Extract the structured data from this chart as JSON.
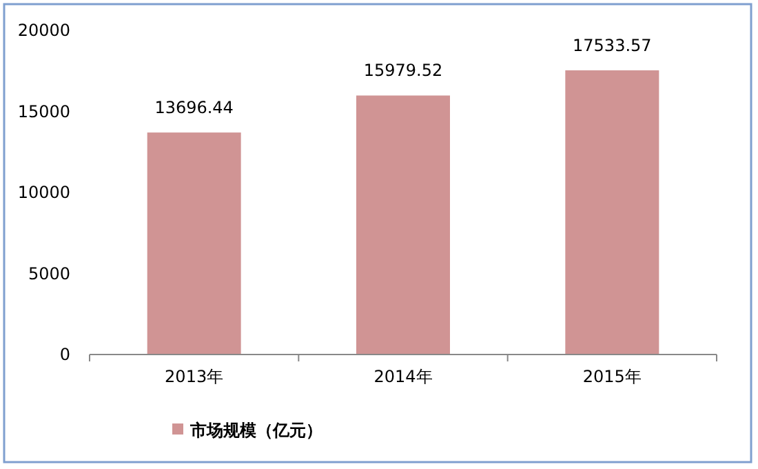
{
  "chart_data": {
    "type": "bar",
    "categories": [
      "2013年",
      "2014年",
      "2015年"
    ],
    "series": [
      {
        "name": "市场规模（亿元）",
        "color": "#d09494",
        "values": [
          13696.44,
          15979.52,
          17533.57
        ]
      }
    ],
    "ylim": [
      0,
      20000
    ],
    "yticks": [
      0,
      5000,
      10000,
      15000,
      20000
    ],
    "data_labels": true,
    "legend": "bottom",
    "grid": false
  }
}
